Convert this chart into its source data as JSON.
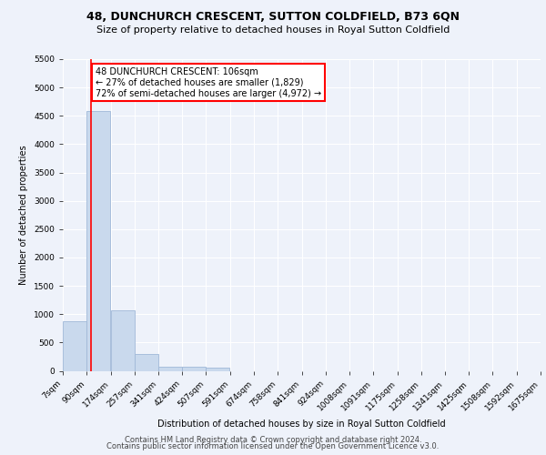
{
  "title_line1": "48, DUNCHURCH CRESCENT, SUTTON COLDFIELD, B73 6QN",
  "title_line2": "Size of property relative to detached houses in Royal Sutton Coldfield",
  "xlabel": "Distribution of detached houses by size in Royal Sutton Coldfield",
  "ylabel": "Number of detached properties",
  "footer_line1": "Contains HM Land Registry data © Crown copyright and database right 2024.",
  "footer_line2": "Contains public sector information licensed under the Open Government Licence v3.0.",
  "annotation_line1": "48 DUNCHURCH CRESCENT: 106sqm",
  "annotation_line2": "← 27% of detached houses are smaller (1,829)",
  "annotation_line3": "72% of semi-detached houses are larger (4,972) →",
  "bins": [
    7,
    90,
    174,
    257,
    341,
    424,
    507,
    591,
    674,
    758,
    841,
    924,
    1008,
    1091,
    1175,
    1258,
    1341,
    1425,
    1508,
    1592,
    1675
  ],
  "bin_labels": [
    "7sqm",
    "90sqm",
    "174sqm",
    "257sqm",
    "341sqm",
    "424sqm",
    "507sqm",
    "591sqm",
    "674sqm",
    "758sqm",
    "841sqm",
    "924sqm",
    "1008sqm",
    "1091sqm",
    "1175sqm",
    "1258sqm",
    "1341sqm",
    "1425sqm",
    "1508sqm",
    "1592sqm",
    "1675sqm"
  ],
  "counts": [
    870,
    4580,
    1060,
    290,
    80,
    65,
    50,
    0,
    0,
    0,
    0,
    0,
    0,
    0,
    0,
    0,
    0,
    0,
    0,
    0
  ],
  "bar_color": "#c9d9ed",
  "bar_edge_color": "#a0b8d8",
  "red_line_x": 106,
  "ylim": [
    0,
    5500
  ],
  "yticks": [
    0,
    500,
    1000,
    1500,
    2000,
    2500,
    3000,
    3500,
    4000,
    4500,
    5000,
    5500
  ],
  "background_color": "#eef2fa",
  "plot_bg_color": "#eef2fa",
  "grid_color": "#ffffff",
  "title_fontsize": 9,
  "subtitle_fontsize": 8,
  "footer_fontsize": 6,
  "ylabel_fontsize": 7,
  "xlabel_fontsize": 7,
  "tick_fontsize": 6.5,
  "annot_fontsize": 7
}
